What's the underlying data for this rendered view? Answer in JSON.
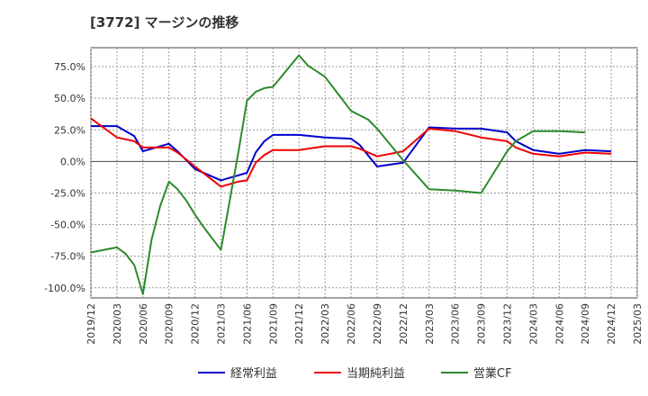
{
  "chart_data": {
    "type": "line",
    "title": "[3772]  マージンの推移",
    "xlabel": "",
    "ylabel": "",
    "x_ticks": [
      "2019/12",
      "2020/03",
      "2020/06",
      "2020/09",
      "2020/12",
      "2021/03",
      "2021/06",
      "2021/09",
      "2021/12",
      "2022/03",
      "2022/06",
      "2022/09",
      "2022/12",
      "2023/03",
      "2023/06",
      "2023/09",
      "2023/12",
      "2024/03",
      "2024/06",
      "2024/09",
      "2024/12",
      "2025/03"
    ],
    "y_ticks": [
      75,
      50,
      25,
      0,
      -25,
      -50,
      -75,
      -100
    ],
    "y_tick_labels": [
      "75.0%",
      "50.0%",
      "25.0%",
      "0.0%",
      "-25.0%",
      "-50.0%",
      "-75.0%",
      "-100.0%"
    ],
    "ylim": [
      -108,
      90
    ],
    "grid": true,
    "legend_position": "bottom",
    "series": [
      {
        "name": "経常利益",
        "color": "#0000cc",
        "points": [
          [
            "2019/12",
            28
          ],
          [
            "2020/03",
            28
          ],
          [
            "2020/05",
            20
          ],
          [
            "2020/06",
            8
          ],
          [
            "2020/09",
            14
          ],
          [
            "2020/10",
            8
          ],
          [
            "2020/12",
            -6
          ],
          [
            "2021/03",
            -15
          ],
          [
            "2021/05",
            -11
          ],
          [
            "2021/06",
            -9
          ],
          [
            "2021/07",
            7
          ],
          [
            "2021/08",
            16
          ],
          [
            "2021/09",
            21
          ],
          [
            "2021/12",
            21
          ],
          [
            "2022/03",
            19
          ],
          [
            "2022/06",
            18
          ],
          [
            "2022/07",
            13
          ],
          [
            "2022/09",
            -4
          ],
          [
            "2022/12",
            -1
          ],
          [
            "2023/03",
            27
          ],
          [
            "2023/06",
            26
          ],
          [
            "2023/09",
            26
          ],
          [
            "2023/12",
            23
          ],
          [
            "2024/01",
            16
          ],
          [
            "2024/03",
            9
          ],
          [
            "2024/06",
            6
          ],
          [
            "2024/09",
            9
          ],
          [
            "2024/12",
            8
          ]
        ]
      },
      {
        "name": "当期純利益",
        "color": "#ee0000",
        "points": [
          [
            "2019/12",
            34
          ],
          [
            "2020/03",
            19
          ],
          [
            "2020/05",
            16
          ],
          [
            "2020/06",
            11
          ],
          [
            "2020/09",
            11
          ],
          [
            "2020/10",
            7
          ],
          [
            "2020/12",
            -4
          ],
          [
            "2021/03",
            -20
          ],
          [
            "2021/05",
            -16
          ],
          [
            "2021/06",
            -15
          ],
          [
            "2021/07",
            -1
          ],
          [
            "2021/08",
            5
          ],
          [
            "2021/09",
            9
          ],
          [
            "2021/12",
            9
          ],
          [
            "2022/02",
            11
          ],
          [
            "2022/03",
            12
          ],
          [
            "2022/06",
            12
          ],
          [
            "2022/07",
            10
          ],
          [
            "2022/09",
            4
          ],
          [
            "2022/12",
            8
          ],
          [
            "2023/03",
            26
          ],
          [
            "2023/06",
            24
          ],
          [
            "2023/09",
            19
          ],
          [
            "2023/12",
            16
          ],
          [
            "2024/01",
            11
          ],
          [
            "2024/03",
            6
          ],
          [
            "2024/06",
            4
          ],
          [
            "2024/09",
            7
          ],
          [
            "2024/12",
            6
          ]
        ]
      },
      {
        "name": "営業CF",
        "color": "#2d8a2d",
        "points": [
          [
            "2019/12",
            -72
          ],
          [
            "2020/03",
            -68
          ],
          [
            "2020/04",
            -73
          ],
          [
            "2020/05",
            -82
          ],
          [
            "2020/06",
            -105
          ],
          [
            "2020/07",
            -62
          ],
          [
            "2020/08",
            -35
          ],
          [
            "2020/09",
            -16
          ],
          [
            "2020/10",
            -22
          ],
          [
            "2020/11",
            -31
          ],
          [
            "2020/12",
            -42
          ],
          [
            "2021/01",
            -52
          ],
          [
            "2021/03",
            -70
          ],
          [
            "2021/05",
            7
          ],
          [
            "2021/06",
            48
          ],
          [
            "2021/07",
            55
          ],
          [
            "2021/08",
            58
          ],
          [
            "2021/09",
            59
          ],
          [
            "2021/12",
            84
          ],
          [
            "2022/01",
            76
          ],
          [
            "2022/03",
            67
          ],
          [
            "2022/06",
            40
          ],
          [
            "2022/08",
            33
          ],
          [
            "2022/09",
            26
          ],
          [
            "2022/12",
            1
          ],
          [
            "2023/03",
            -22
          ],
          [
            "2023/06",
            -23
          ],
          [
            "2023/09",
            -25
          ],
          [
            "2023/12",
            8
          ],
          [
            "2024/01",
            16
          ],
          [
            "2024/03",
            24
          ],
          [
            "2024/06",
            24
          ],
          [
            "2024/09",
            23
          ]
        ]
      }
    ]
  }
}
